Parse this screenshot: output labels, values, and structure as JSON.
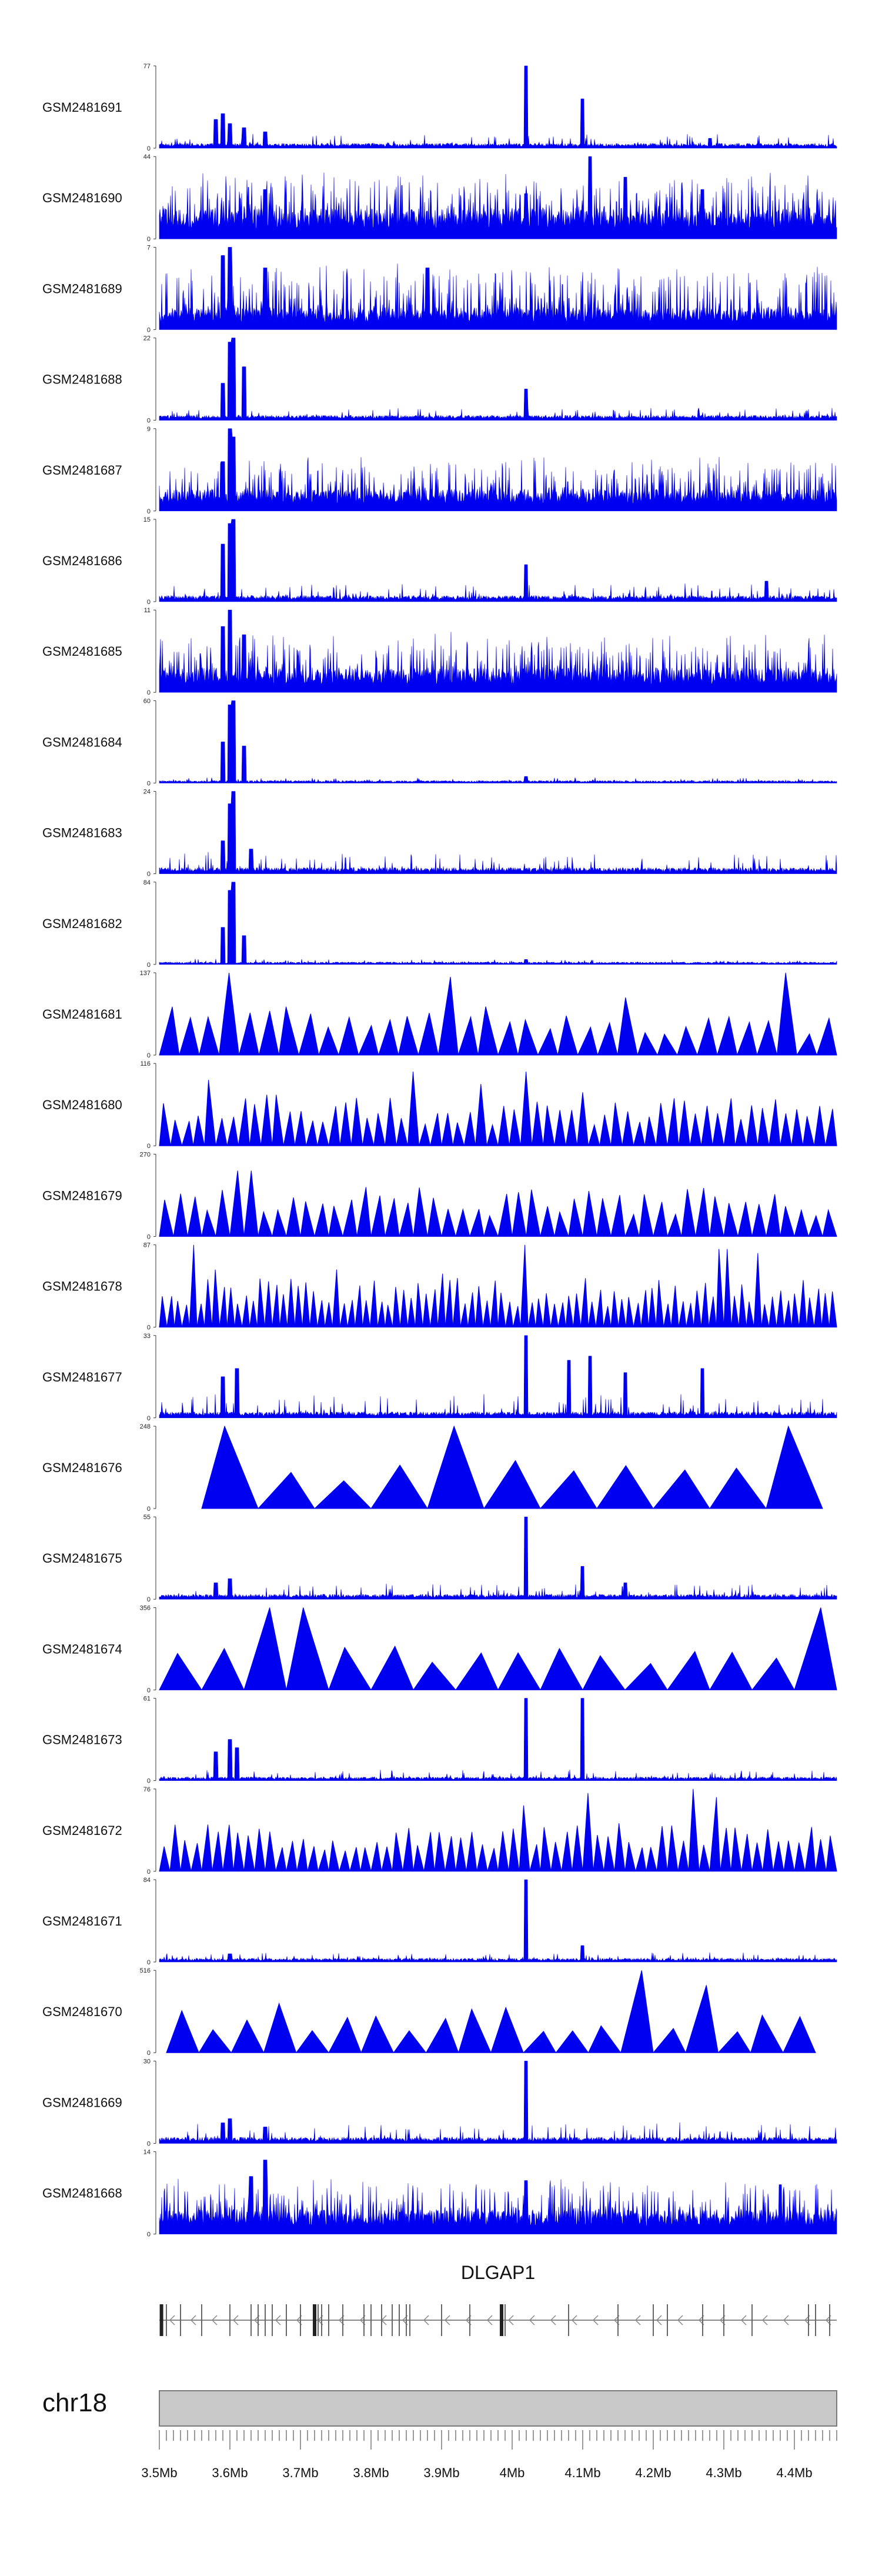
{
  "chart_data": {
    "type": "area",
    "title": "",
    "chromosome": "chr18",
    "gene": "DLGAP1",
    "xlim_mb": [
      3.5,
      4.46
    ],
    "x_ticks": [
      {
        "label": "3.5Mb",
        "mb": 3.5
      },
      {
        "label": "3.6Mb",
        "mb": 3.6
      },
      {
        "label": "3.7Mb",
        "mb": 3.7
      },
      {
        "label": "3.8Mb",
        "mb": 3.8
      },
      {
        "label": "3.9Mb",
        "mb": 3.9
      },
      {
        "label": "4Mb",
        "mb": 4.0
      },
      {
        "label": "4.1Mb",
        "mb": 4.1
      },
      {
        "label": "4.2Mb",
        "mb": 4.2
      },
      {
        "label": "4.3Mb",
        "mb": 4.3
      },
      {
        "label": "4.4Mb",
        "mb": 4.4
      }
    ],
    "track_color": "#0000f0",
    "series": [
      {
        "name": "GSM2481691",
        "ymin": 0,
        "ymax": 77,
        "style": "dense",
        "baseline": 0.04,
        "noise": 0.06,
        "peaks": [
          [
            3.58,
            0.35
          ],
          [
            3.59,
            0.42
          ],
          [
            3.6,
            0.3
          ],
          [
            3.62,
            0.25
          ],
          [
            3.65,
            0.2
          ],
          [
            4.02,
            1.0
          ],
          [
            4.1,
            0.6
          ],
          [
            4.28,
            0.12
          ]
        ]
      },
      {
        "name": "GSM2481690",
        "ymin": 0,
        "ymax": 44,
        "style": "spiky",
        "baseline": 0.25,
        "noise": 0.45,
        "peaks": [
          [
            3.65,
            0.6
          ],
          [
            4.02,
            0.55
          ],
          [
            4.11,
            1.0
          ],
          [
            4.16,
            0.75
          ],
          [
            4.27,
            0.6
          ]
        ]
      },
      {
        "name": "GSM2481689",
        "ymin": 0,
        "ymax": 7,
        "style": "spiky",
        "baseline": 0.18,
        "noise": 0.55,
        "peaks": [
          [
            3.59,
            0.9
          ],
          [
            3.6,
            1.0
          ],
          [
            3.65,
            0.75
          ],
          [
            3.88,
            0.75
          ]
        ]
      },
      {
        "name": "GSM2481688",
        "ymin": 0,
        "ymax": 22,
        "style": "dense",
        "baseline": 0.04,
        "noise": 0.05,
        "peaks": [
          [
            3.59,
            0.45
          ],
          [
            3.6,
            0.95
          ],
          [
            3.605,
            1.0
          ],
          [
            3.62,
            0.65
          ],
          [
            4.02,
            0.38
          ]
        ]
      },
      {
        "name": "GSM2481687",
        "ymin": 0,
        "ymax": 9,
        "style": "spiky",
        "baseline": 0.18,
        "noise": 0.4,
        "peaks": [
          [
            3.6,
            1.0
          ],
          [
            3.605,
            0.9
          ],
          [
            3.59,
            0.6
          ]
        ]
      },
      {
        "name": "GSM2481686",
        "ymin": 0,
        "ymax": 15,
        "style": "dense",
        "baseline": 0.05,
        "noise": 0.08,
        "peaks": [
          [
            3.59,
            0.7
          ],
          [
            3.6,
            0.95
          ],
          [
            3.605,
            1.0
          ],
          [
            4.02,
            0.45
          ],
          [
            4.36,
            0.25
          ]
        ]
      },
      {
        "name": "GSM2481685",
        "ymin": 0,
        "ymax": 11,
        "style": "spiky",
        "baseline": 0.2,
        "noise": 0.45,
        "peaks": [
          [
            3.59,
            0.8
          ],
          [
            3.6,
            1.0
          ],
          [
            3.62,
            0.7
          ]
        ]
      },
      {
        "name": "GSM2481684",
        "ymin": 0,
        "ymax": 60,
        "style": "dense",
        "baseline": 0.02,
        "noise": 0.02,
        "peaks": [
          [
            3.59,
            0.5
          ],
          [
            3.6,
            0.95
          ],
          [
            3.605,
            1.0
          ],
          [
            3.62,
            0.45
          ],
          [
            4.02,
            0.08
          ]
        ]
      },
      {
        "name": "GSM2481683",
        "ymin": 0,
        "ymax": 24,
        "style": "dense",
        "baseline": 0.05,
        "noise": 0.1,
        "peaks": [
          [
            3.59,
            0.4
          ],
          [
            3.6,
            0.85
          ],
          [
            3.605,
            1.0
          ],
          [
            3.63,
            0.3
          ]
        ]
      },
      {
        "name": "GSM2481682",
        "ymin": 0,
        "ymax": 84,
        "style": "dense",
        "baseline": 0.02,
        "noise": 0.02,
        "peaks": [
          [
            3.59,
            0.45
          ],
          [
            3.6,
            0.9
          ],
          [
            3.605,
            1.0
          ],
          [
            3.62,
            0.35
          ],
          [
            4.02,
            0.06
          ]
        ]
      },
      {
        "name": "GSM2481681",
        "ymin": 0,
        "ymax": 137,
        "style": "triangles",
        "count": 34,
        "peaks": [
          [
            3.61,
            1.0
          ],
          [
            3.9,
            0.95
          ],
          [
            4.15,
            0.7
          ],
          [
            4.4,
            1.0
          ]
        ]
      },
      {
        "name": "GSM2481680",
        "ymin": 0,
        "ymax": 116,
        "style": "triangles",
        "count": 60,
        "peaks": [
          [
            3.57,
            0.8
          ],
          [
            3.66,
            0.62
          ],
          [
            3.86,
            0.9
          ],
          [
            3.95,
            0.75
          ],
          [
            4.02,
            0.9
          ],
          [
            4.1,
            0.65
          ]
        ]
      },
      {
        "name": "GSM2481679",
        "ymin": 0,
        "ymax": 270,
        "style": "triangles",
        "count": 48,
        "peaks": [
          [
            3.6,
            0.35
          ],
          [
            3.62,
            0.8
          ],
          [
            3.65,
            0.3
          ],
          [
            4.02,
            0.3
          ]
        ]
      },
      {
        "name": "GSM2481678",
        "ymin": 0,
        "ymax": 87,
        "style": "triangles",
        "count": 90,
        "peaks": [
          [
            3.55,
            1.0
          ],
          [
            3.58,
            0.7
          ],
          [
            3.75,
            0.7
          ],
          [
            3.9,
            0.65
          ],
          [
            4.02,
            1.0
          ],
          [
            4.3,
            0.95
          ],
          [
            4.35,
            0.9
          ]
        ]
      },
      {
        "name": "GSM2481677",
        "ymin": 0,
        "ymax": 33,
        "style": "dense",
        "baseline": 0.05,
        "noise": 0.12,
        "peaks": [
          [
            3.59,
            0.5
          ],
          [
            3.61,
            0.6
          ],
          [
            4.02,
            1.0
          ],
          [
            4.08,
            0.7
          ],
          [
            4.11,
            0.75
          ],
          [
            4.16,
            0.55
          ],
          [
            4.27,
            0.6
          ]
        ]
      },
      {
        "name": "GSM2481676",
        "ymin": 0,
        "ymax": 248,
        "style": "triangles",
        "count": 11,
        "start": 3.56,
        "end": 4.44,
        "peaks": [
          [
            3.62,
            1.0
          ],
          [
            3.9,
            1.0
          ],
          [
            4.4,
            1.0
          ]
        ]
      },
      {
        "name": "GSM2481675",
        "ymin": 0,
        "ymax": 55,
        "style": "dense",
        "baseline": 0.04,
        "noise": 0.07,
        "peaks": [
          [
            3.58,
            0.2
          ],
          [
            3.6,
            0.25
          ],
          [
            4.02,
            1.0
          ],
          [
            4.1,
            0.4
          ],
          [
            4.16,
            0.2
          ]
        ]
      },
      {
        "name": "GSM2481674",
        "ymin": 0,
        "ymax": 356,
        "style": "triangles",
        "count": 16,
        "peaks": [
          [
            3.63,
            1.0
          ],
          [
            3.7,
            1.0
          ],
          [
            3.98,
            0.45
          ],
          [
            4.45,
            1.0
          ]
        ]
      },
      {
        "name": "GSM2481673",
        "ymin": 0,
        "ymax": 61,
        "style": "dense",
        "baseline": 0.03,
        "noise": 0.05,
        "peaks": [
          [
            3.58,
            0.35
          ],
          [
            3.6,
            0.5
          ],
          [
            3.61,
            0.4
          ],
          [
            4.02,
            1.0
          ],
          [
            4.1,
            1.0
          ]
        ]
      },
      {
        "name": "GSM2481672",
        "ymin": 0,
        "ymax": 76,
        "style": "triangles",
        "count": 64,
        "peaks": [
          [
            4.02,
            0.8
          ],
          [
            4.11,
            0.95
          ],
          [
            4.26,
            1.0
          ],
          [
            4.28,
            0.9
          ]
        ]
      },
      {
        "name": "GSM2481671",
        "ymin": 0,
        "ymax": 84,
        "style": "dense",
        "baseline": 0.03,
        "noise": 0.04,
        "peaks": [
          [
            4.02,
            1.0
          ],
          [
            4.1,
            0.2
          ],
          [
            3.6,
            0.1
          ]
        ]
      },
      {
        "name": "GSM2481670",
        "ymin": 0,
        "ymax": 516,
        "style": "triangles",
        "count": 20,
        "start": 3.51,
        "end": 4.43,
        "peaks": [
          [
            4.19,
            1.0
          ],
          [
            4.26,
            0.6
          ],
          [
            4.28,
            0.82
          ]
        ]
      },
      {
        "name": "GSM2481669",
        "ymin": 0,
        "ymax": 30,
        "style": "dense",
        "baseline": 0.05,
        "noise": 0.1,
        "peaks": [
          [
            3.59,
            0.25
          ],
          [
            3.6,
            0.3
          ],
          [
            4.02,
            1.0
          ],
          [
            3.65,
            0.2
          ]
        ]
      },
      {
        "name": "GSM2481668",
        "ymin": 0,
        "ymax": 14,
        "style": "spiky",
        "baseline": 0.2,
        "noise": 0.4,
        "peaks": [
          [
            3.65,
            0.9
          ],
          [
            3.63,
            0.7
          ],
          [
            4.02,
            0.65
          ],
          [
            4.38,
            0.6
          ]
        ]
      }
    ],
    "gene_model": {
      "strand": "-",
      "start_mb": 3.5,
      "end_mb": 4.46,
      "exons_mb": [
        3.503,
        3.51,
        3.53,
        3.56,
        3.6,
        3.63,
        3.64,
        3.65,
        3.66,
        3.68,
        3.7,
        3.72,
        3.725,
        3.73,
        3.74,
        3.76,
        3.79,
        3.8,
        3.815,
        3.83,
        3.84,
        3.85,
        3.855,
        3.9,
        3.94,
        3.985,
        3.99,
        4.08,
        4.15,
        4.2,
        4.22,
        4.27,
        4.3,
        4.34,
        4.42,
        4.43,
        4.45
      ]
    }
  }
}
